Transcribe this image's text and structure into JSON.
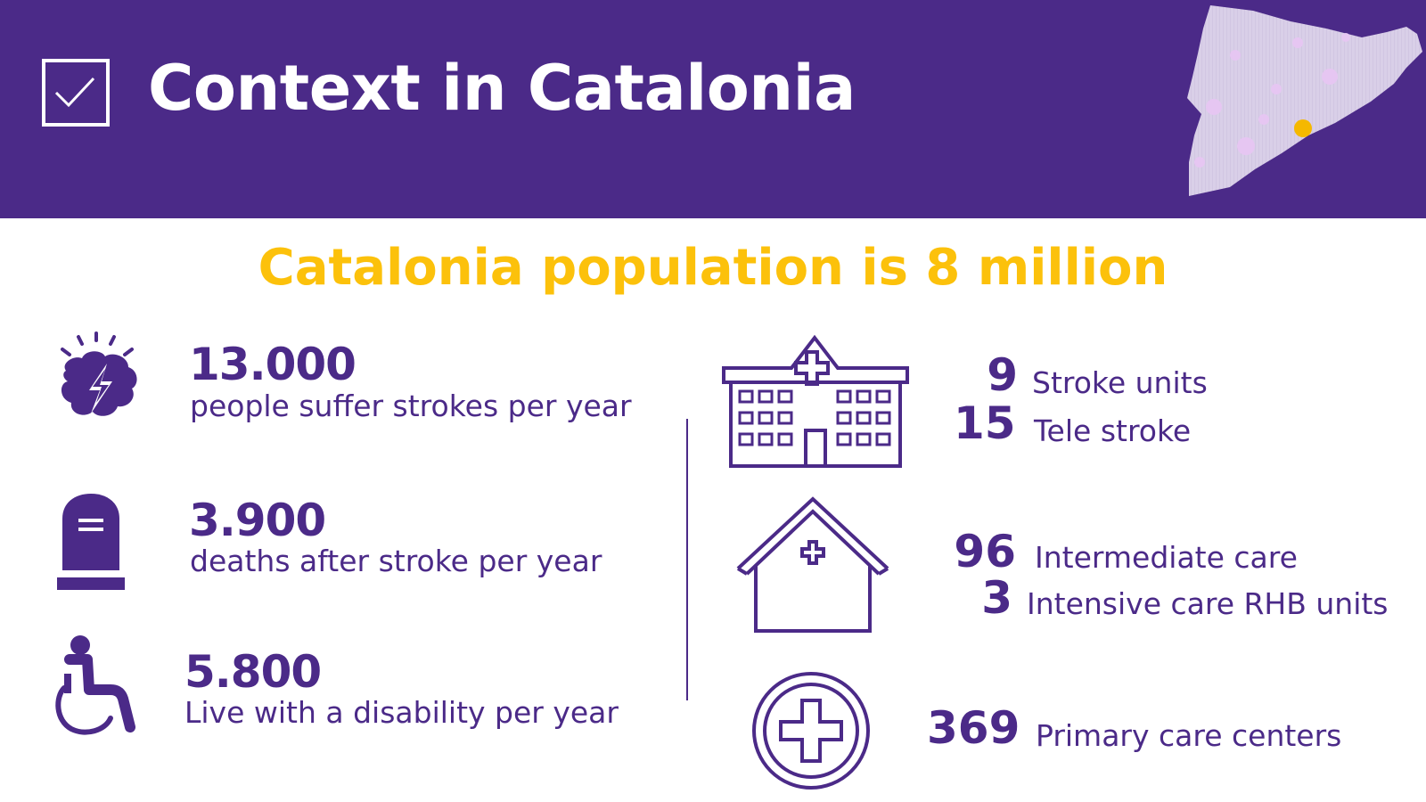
{
  "header": {
    "title": "Context in Catalonia",
    "icons": {
      "checkbox": "checkbox-icon",
      "map": "catalonia-map-icon"
    }
  },
  "subtitle": "Catalonia population is 8 million",
  "stats": [
    {
      "icon": "brain-stroke-icon",
      "number": "13.000",
      "label": "people suffer strokes per year"
    },
    {
      "icon": "gravestone-icon",
      "number": "3.900",
      "label": "deaths after stroke per year"
    },
    {
      "icon": "wheelchair-icon",
      "number": "5.800",
      "label": "Live with a disability per year"
    }
  ],
  "facilities": {
    "hospital": {
      "icon": "hospital-building-icon",
      "items": [
        {
          "number": "9",
          "label": "Stroke units"
        },
        {
          "number": "15",
          "label": "Tele stroke"
        }
      ]
    },
    "care_home": {
      "icon": "care-house-icon",
      "items": [
        {
          "number": "96",
          "label": "Intermediate care"
        },
        {
          "number": "3",
          "label": "Intensive care RHB units"
        }
      ]
    },
    "primary": {
      "icon": "medical-cross-circle-icon",
      "items": [
        {
          "number": "369",
          "label": "Primary care centers"
        }
      ]
    }
  },
  "colors": {
    "primary_purple": "#4b2a88",
    "accent_yellow": "#fcc10b",
    "map_fill": "#d9cfe8",
    "map_dot": "#e6c6f2",
    "map_highlight": "#f5b800"
  }
}
